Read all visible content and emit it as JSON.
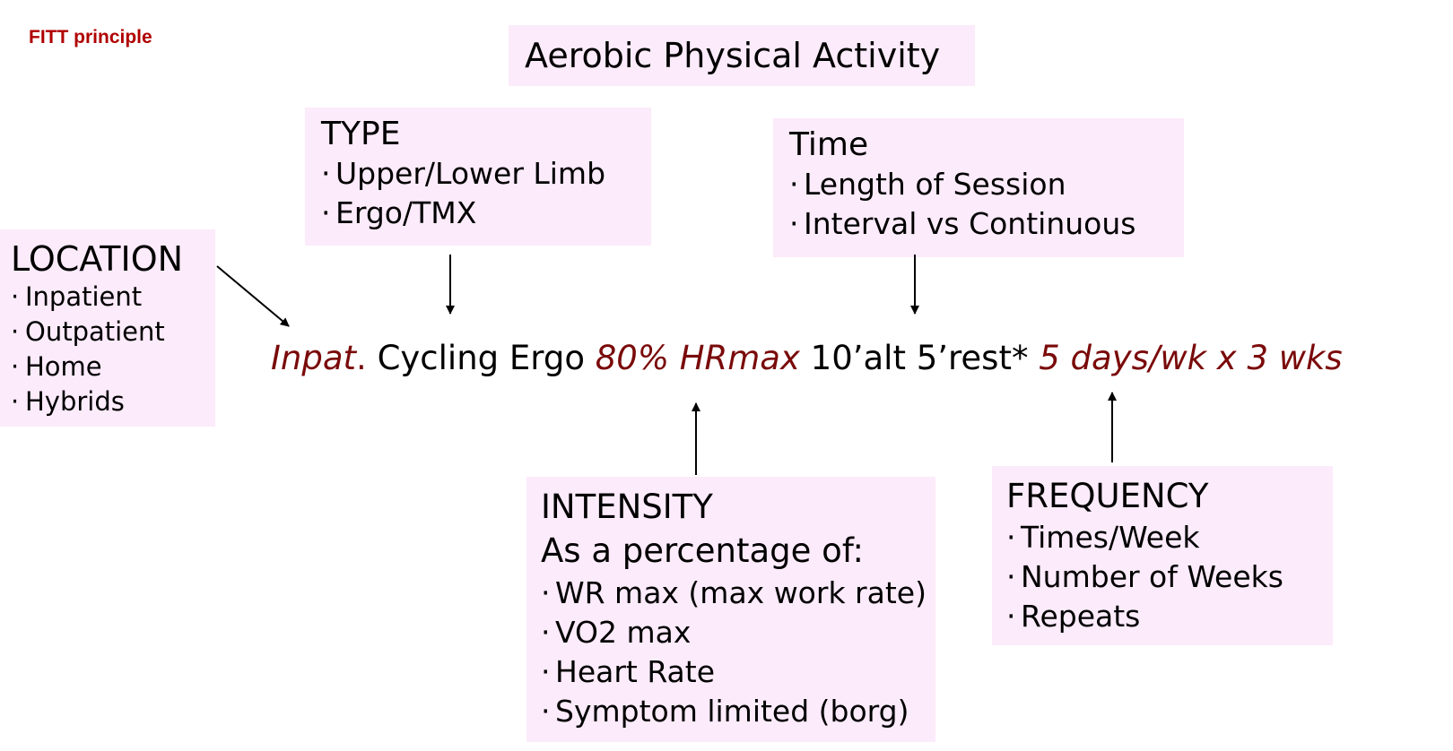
{
  "corner_label": "FITT principle",
  "heading": "Aerobic Physical Activity",
  "type_box": {
    "title": "TYPE",
    "items": [
      "Upper/Lower Limb",
      "Ergo/TMX"
    ]
  },
  "time_box": {
    "title": "Time",
    "items": [
      "Length of Session",
      "Interval vs Continuous"
    ]
  },
  "location_box": {
    "title": "LOCATION",
    "items": [
      "Inpatient",
      "Outpatient",
      "Home",
      "Hybrids"
    ]
  },
  "intensity_box": {
    "title": "INTENSITY",
    "subtitle": "As a percentage of:",
    "items": [
      "WR max (max work rate)",
      "VO2 max",
      "Heart Rate",
      "Symptom limited (borg)"
    ]
  },
  "frequency_box": {
    "title": "FREQUENCY",
    "items": [
      "Times/Week",
      "Number of Weeks",
      "Repeats"
    ]
  },
  "formula": {
    "location": "Inpat",
    "dot": ".",
    "type": "Cycling Ergo",
    "intensity": "80% HRmax",
    "time": "10’alt 5’rest*",
    "frequency": "5 days/wk x 3 wks"
  },
  "colors": {
    "box_fill": "#fcebfb",
    "accent": "#7a0a0a",
    "corner_label": "#b00000"
  }
}
